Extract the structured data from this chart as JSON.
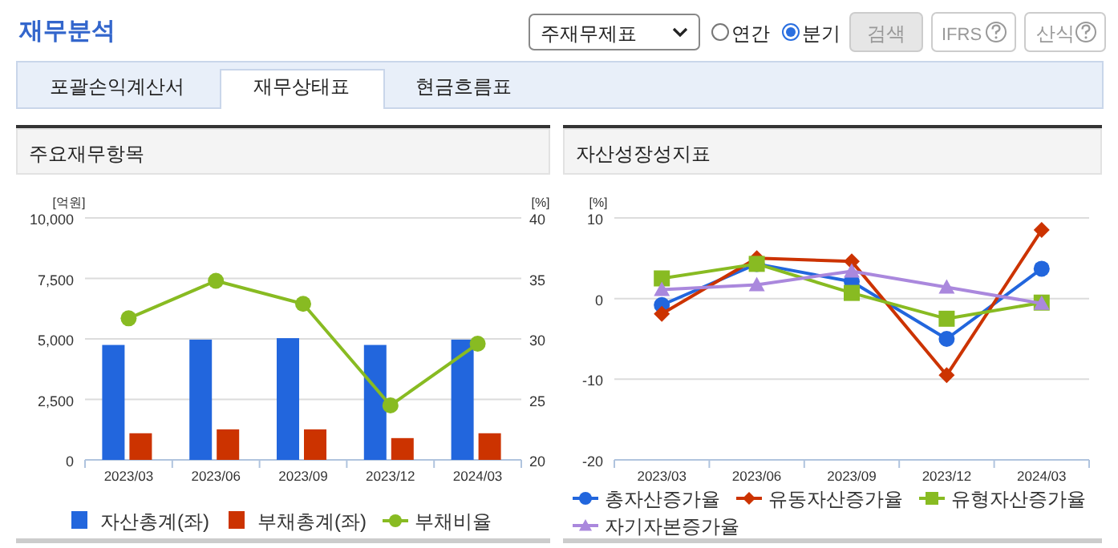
{
  "chart_data": [
    {
      "type": "bar",
      "title": "주요재무항목",
      "annotations": [
        "재무분석",
        "주재무제표",
        "연간",
        "분기",
        "검색",
        "IFRS",
        "산식",
        "포괄손익계산서",
        "재무상태표",
        "현금흐름표"
      ],
      "categories": [
        "2023/03",
        "2023/06",
        "2023/09",
        "2023/12",
        "2024/03"
      ],
      "ylabel": "[억원]",
      "y2label": "[%]",
      "ylim": [
        0,
        10000
      ],
      "yticks": [
        0,
        {
          "value": 2500,
          "label": "2,500"
        },
        {
          "value": 5000,
          "label": "5,000"
        },
        {
          "value": 7500,
          "label": "7,500"
        },
        {
          "value": 10000,
          "label": "10,000"
        }
      ],
      "y2lim": [
        20,
        40
      ],
      "y2ticks": [
        20,
        25,
        30,
        35,
        40
      ],
      "grid": "y",
      "legend": "bottom",
      "series": [
        {
          "name": "자산총계(좌)",
          "color": "#2266dd",
          "values": [
            4750,
            4970,
            5030,
            4750,
            4970
          ]
        },
        {
          "name": "부채총계(좌)",
          "color": "#cc3300",
          "values": [
            1100,
            1260,
            1260,
            900,
            1100
          ]
        },
        {
          "name": "부채비율",
          "type": "line",
          "axis": "y2",
          "marker": "circle",
          "color": "#88bb22",
          "values": [
            31.7,
            34.8,
            32.9,
            24.5,
            29.6
          ]
        }
      ]
    },
    {
      "type": "line",
      "title": "자산성장성지표",
      "categories": [
        "2023/03",
        "2023/06",
        "2023/09",
        "2023/12",
        "2024/03"
      ],
      "ylabel": "[%]",
      "ylim": [
        -20,
        10
      ],
      "yticks": [
        -20,
        -10,
        0,
        10
      ],
      "grid": "y",
      "legend": "bottom",
      "series": [
        {
          "name": "총자산증가율",
          "color": "#2266dd",
          "marker": "circle",
          "values": [
            -0.8,
            4.3,
            2.1,
            -5.0,
            3.7
          ]
        },
        {
          "name": "유동자산증가율",
          "color": "#cc3300",
          "marker": "diamond",
          "values": [
            -1.9,
            5.0,
            4.6,
            -9.5,
            8.5
          ]
        },
        {
          "name": "유형자산증가율",
          "color": "#88bb22",
          "marker": "square",
          "values": [
            2.5,
            4.3,
            0.7,
            -2.5,
            -0.5
          ]
        },
        {
          "name": "자기자본증가율",
          "color": "#aa88dd",
          "marker": "triangle",
          "values": [
            1.1,
            1.7,
            3.4,
            1.4,
            -0.6
          ]
        }
      ]
    }
  ]
}
